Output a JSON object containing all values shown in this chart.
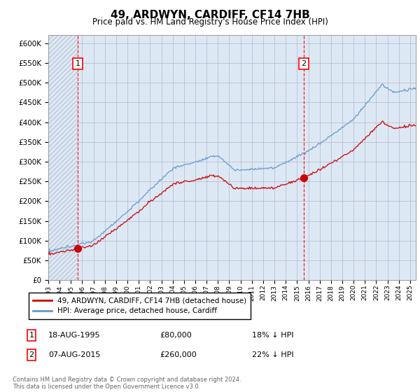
{
  "title": "49, ARDWYN, CARDIFF, CF14 7HB",
  "subtitle": "Price paid vs. HM Land Registry's House Price Index (HPI)",
  "yticks": [
    0,
    50000,
    100000,
    150000,
    200000,
    250000,
    300000,
    350000,
    400000,
    450000,
    500000,
    550000,
    600000
  ],
  "ylim": [
    0,
    620000
  ],
  "xlim_start": 1993,
  "xlim_end": 2025.5,
  "sale1_x": 1995.62,
  "sale1_y": 80000,
  "sale2_x": 2015.59,
  "sale2_y": 260000,
  "sale1_label": "1",
  "sale2_label": "2",
  "legend_line1": "49, ARDWYN, CARDIFF, CF14 7HB (detached house)",
  "legend_line2": "HPI: Average price, detached house, Cardiff",
  "annot1_date": "18-AUG-1995",
  "annot1_price": "£80,000",
  "annot1_hpi": "18% ↓ HPI",
  "annot2_date": "07-AUG-2015",
  "annot2_price": "£260,000",
  "annot2_hpi": "22% ↓ HPI",
  "red_line_color": "#cc0000",
  "blue_line_color": "#6699cc",
  "grid_color": "#b0b8cc",
  "bg_plot_color": "#dde8f5",
  "hatch_edgecolor": "#c0c8d8",
  "footnote": "Contains HM Land Registry data © Crown copyright and database right 2024.\nThis data is licensed under the Open Government Licence v3.0."
}
